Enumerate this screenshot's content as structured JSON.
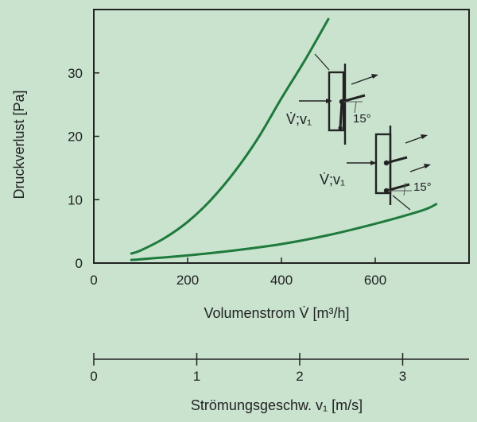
{
  "colors": {
    "background": "#c9e3cf",
    "curve": "#1f7a3c",
    "ink": "#222222"
  },
  "chart_data": {
    "type": "line",
    "ylabel": "Druckverlust [Pa]",
    "xlabel": "Volumenstrom V̇ [m³/h]",
    "xlim": [
      0,
      800
    ],
    "ylim": [
      0,
      40
    ],
    "x_ticks": [
      0,
      200,
      400,
      600
    ],
    "y_ticks": [
      0,
      10,
      20,
      30
    ],
    "grid": false,
    "series": [
      {
        "x": [
          80,
          100,
          150,
          200,
          250,
          300,
          350,
          400,
          450,
          500
        ],
        "y": [
          1.5,
          2.0,
          3.9,
          6.5,
          10.0,
          14.4,
          19.7,
          26.0,
          32.0,
          38.5
        ]
      },
      {
        "x": [
          80,
          100,
          200,
          300,
          400,
          500,
          600,
          700,
          730
        ],
        "y": [
          0.5,
          0.6,
          1.2,
          2.0,
          3.0,
          4.4,
          6.2,
          8.3,
          9.3
        ]
      }
    ],
    "secondary_axis": {
      "label": "Strömungsgeschw. v₁ [m/s]",
      "ticks": [
        0,
        1,
        2,
        3
      ],
      "value_per_tick_px": 129.5
    },
    "annotations": [
      {
        "text": "V̇;v₁",
        "angle": "15°"
      },
      {
        "text": "V̇;v₁",
        "angle": "15°"
      }
    ]
  }
}
